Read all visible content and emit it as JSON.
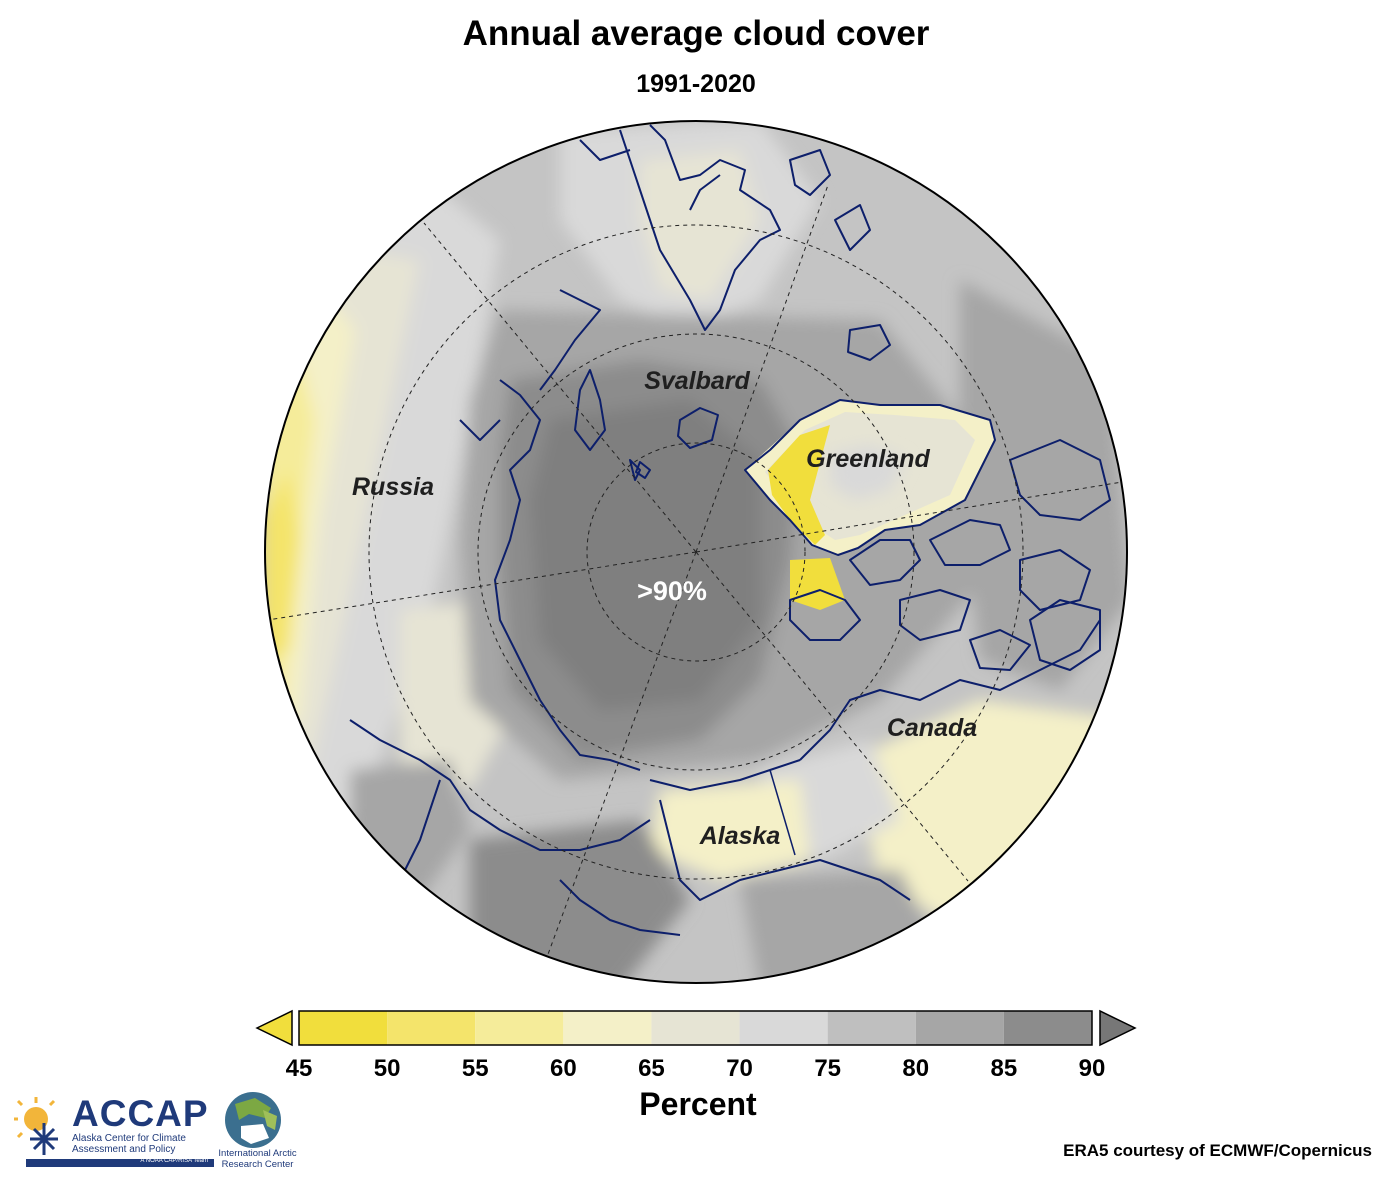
{
  "title": "Annual average cloud cover",
  "subtitle": "1991-2020",
  "region_labels": {
    "svalbard": "Svalbard",
    "greenland": "Greenland",
    "russia": "Russia",
    "canada": "Canada",
    "alaska": "Alaska",
    "pole_value": ">90%"
  },
  "colorbar": {
    "title": "Percent",
    "ticks": [
      "45",
      "50",
      "55",
      "60",
      "65",
      "70",
      "75",
      "80",
      "85",
      "90"
    ],
    "bins": [
      {
        "from": 45,
        "to": 50,
        "color": "#f1de3c"
      },
      {
        "from": 50,
        "to": 55,
        "color": "#f4e46b"
      },
      {
        "from": 55,
        "to": 60,
        "color": "#f5ec9a"
      },
      {
        "from": 60,
        "to": 65,
        "color": "#f4f0c8"
      },
      {
        "from": 65,
        "to": 70,
        "color": "#e6e4d4"
      },
      {
        "from": 70,
        "to": 75,
        "color": "#d9d9d9"
      },
      {
        "from": 75,
        "to": 80,
        "color": "#bfbfbf"
      },
      {
        "from": 80,
        "to": 85,
        "color": "#a6a6a6"
      },
      {
        "from": 85,
        "to": 90,
        "color": "#8c8c8c"
      }
    ],
    "under_color": "#f1de3c",
    "over_color": "#777777",
    "range": [
      45,
      90
    ],
    "extend": "both"
  },
  "credit": "ERA5 courtesy of ECMWF/Copernicus",
  "logos": {
    "accap_word": "ACCAP",
    "accap_subtitle": "Alaska Center for Climate Assessment and Policy",
    "accap_tagline": "A NOAA CAP/RISA Team",
    "iarc_name": "International Arctic Research Center"
  },
  "colors": {
    "coastline": "#0d1f6b",
    "polar_core": "#7f7f7f"
  }
}
